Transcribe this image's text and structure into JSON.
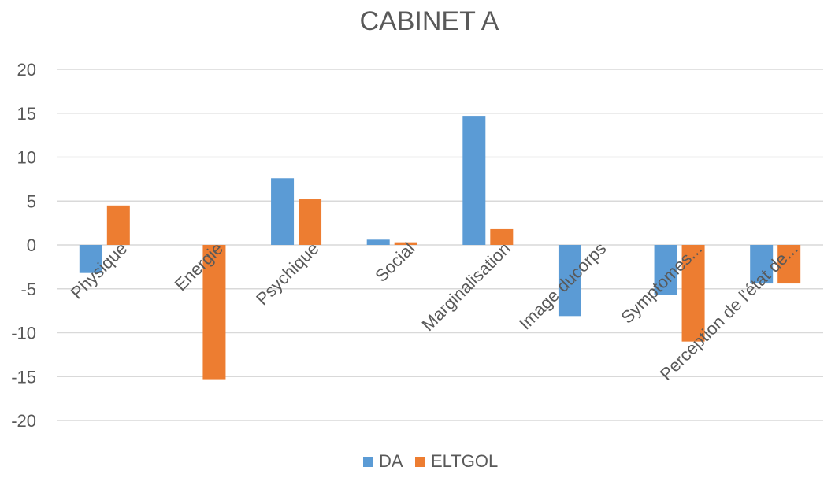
{
  "chart_data": {
    "type": "bar",
    "title": "CABINET A",
    "xlabel": "",
    "ylabel": "",
    "ylim": [
      -20,
      20
    ],
    "yticks": [
      20,
      15,
      10,
      5,
      0,
      -5,
      -10,
      -15,
      -20
    ],
    "grid": true,
    "legend_position": "bottom",
    "categories": [
      "Physique",
      "Energie",
      "Psychique",
      "Social",
      "Marginalisation",
      "Image ducorps",
      "Symptomes...",
      "Perception de l'état de..."
    ],
    "series": [
      {
        "name": "DA",
        "color": "#5b9bd5",
        "values": [
          -3.2,
          0,
          7.6,
          0.6,
          14.7,
          -8.1,
          -5.7,
          -4.4
        ]
      },
      {
        "name": "ELTGOL",
        "color": "#ed7d31",
        "values": [
          4.5,
          -15.3,
          5.2,
          0.3,
          1.8,
          0,
          -11.0,
          -4.4
        ]
      }
    ]
  }
}
